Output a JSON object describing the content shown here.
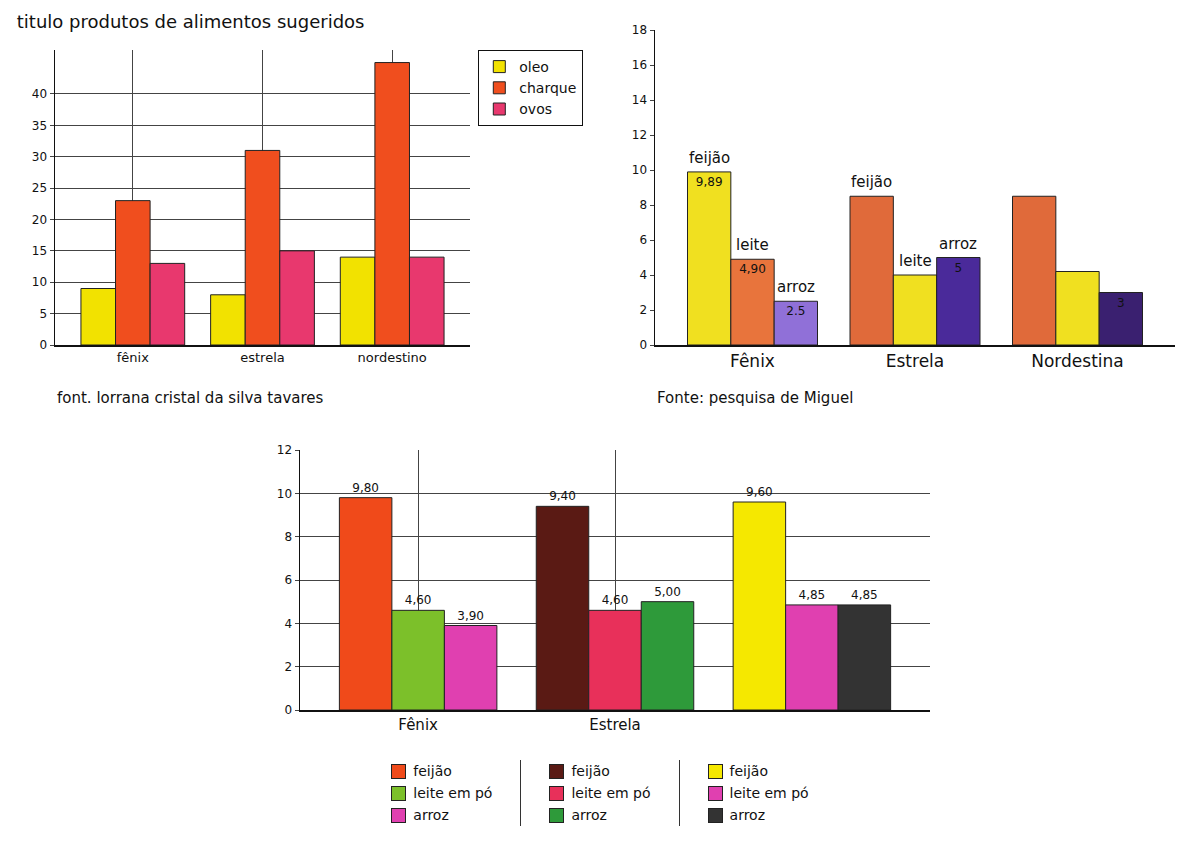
{
  "chart_data": [
    {
      "type": "bar",
      "title": "titulo produtos de alimentos sugeridos",
      "categories": [
        "fênix",
        "estrela",
        "nordestino"
      ],
      "series": [
        {
          "name": "oleo",
          "color": "#f2e200",
          "values": [
            9,
            8,
            14
          ]
        },
        {
          "name": "charque",
          "color": "#f04e1e",
          "values": [
            23,
            31,
            45
          ]
        },
        {
          "name": "ovos",
          "color": "#e8386e",
          "values": [
            13,
            15,
            14
          ]
        }
      ],
      "ylim": [
        0,
        47
      ],
      "yticks": [
        0,
        5,
        10,
        15,
        20,
        25,
        30,
        35,
        40
      ],
      "grid": true,
      "legend": "right",
      "source": "font. lorrana cristal da silva tavares"
    },
    {
      "type": "bar",
      "categories": [
        "Fênix",
        "Estrela",
        "Nordestina"
      ],
      "series": [
        {
          "name": "feijão",
          "colors": [
            "#f0e020",
            "#e06a3a",
            "#e06a3a"
          ],
          "values": [
            9.89,
            8.5,
            8.5
          ],
          "value_labels": [
            "9,89",
            null,
            null
          ]
        },
        {
          "name": "leite",
          "colors": [
            "#e8743c",
            "#f0e020",
            "#f0e020"
          ],
          "values": [
            4.9,
            4,
            4.2
          ],
          "value_labels": [
            "4,90",
            null,
            null
          ]
        },
        {
          "name": "arroz",
          "colors": [
            "#9070d8",
            "#4a2a9a",
            "#3a2070"
          ],
          "values": [
            2.5,
            5,
            3
          ]
        }
      ],
      "ylim": [
        0,
        18
      ],
      "yticks": [
        0,
        2,
        4,
        6,
        8,
        10,
        12,
        14,
        16,
        18
      ],
      "grid": false,
      "data_labels": true,
      "annotations": [
        {
          "text": "feijão",
          "category": 0,
          "series": 0
        },
        {
          "text": "leite",
          "category": 0,
          "series": 1
        },
        {
          "text": "arroz",
          "category": 0,
          "series": 2
        },
        {
          "text": "feijão",
          "category": 1,
          "series": 0
        },
        {
          "text": "leite",
          "category": 1,
          "series": 1
        },
        {
          "text": "arroz",
          "category": 1,
          "series": 2
        }
      ],
      "source": "Fonte: pesquisa de Miguel"
    },
    {
      "type": "bar",
      "categories": [
        "Fênix",
        "Estrela",
        null
      ],
      "series": [
        {
          "name": "feijão",
          "colors": [
            "#f04a1a",
            "#5a1a14",
            "#f5e800"
          ],
          "values": [
            9.8,
            9.4,
            9.6
          ],
          "value_labels": [
            "9,80",
            "9,40",
            "9,60"
          ]
        },
        {
          "name": "leite em pó",
          "colors": [
            "#7cc02a",
            "#e8305a",
            "#e040b0"
          ],
          "values": [
            4.6,
            4.6,
            4.85
          ],
          "value_labels": [
            "4,60",
            "4,60",
            "4,85"
          ]
        },
        {
          "name": "arroz",
          "colors": [
            "#e040b0",
            "#2e9a3a",
            "#333333"
          ],
          "values": [
            3.9,
            5,
            4.85
          ],
          "value_labels": [
            "3,90",
            "5,00",
            "4,85"
          ]
        }
      ],
      "ylim": [
        0,
        12
      ],
      "yticks": [
        0,
        2,
        4,
        6,
        8,
        10,
        12
      ],
      "grid": true,
      "data_labels": true,
      "legend": "bottom"
    }
  ]
}
